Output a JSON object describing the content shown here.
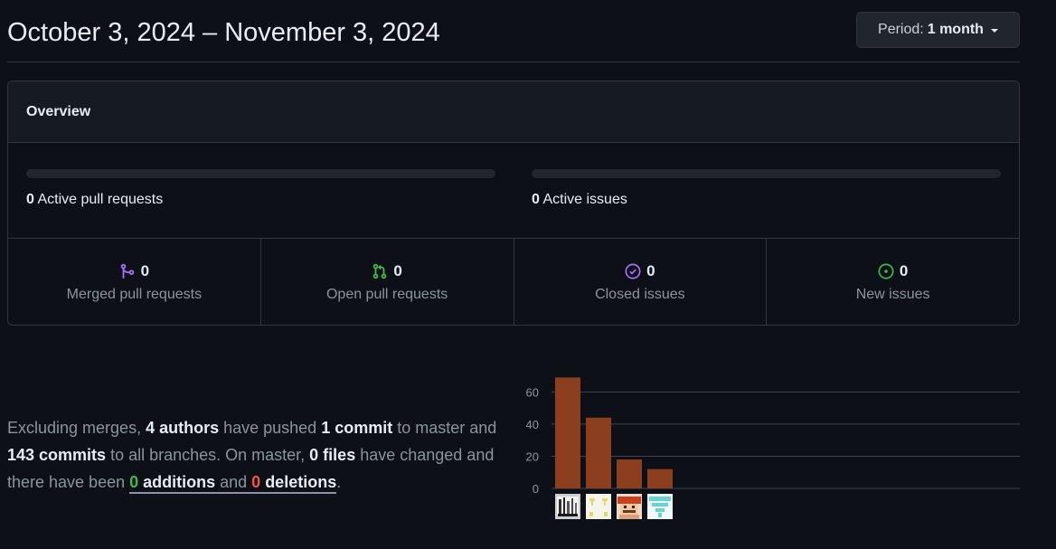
{
  "header": {
    "date_range": "October 3, 2024 – November 3, 2024",
    "period_prefix": "Period:",
    "period_value": "1 month"
  },
  "overview": {
    "title": "Overview",
    "active_prs": {
      "count": "0",
      "label": "Active pull requests",
      "fraction": 0
    },
    "active_issues": {
      "count": "0",
      "label": "Active issues",
      "fraction": 0
    },
    "stats": [
      {
        "icon": "merge-icon",
        "count": "0",
        "label": "Merged pull requests",
        "color": "#a371f7"
      },
      {
        "icon": "pull-request-icon",
        "count": "0",
        "label": "Open pull requests",
        "color": "#3fb950"
      },
      {
        "icon": "issue-closed-icon",
        "count": "0",
        "label": "Closed issues",
        "color": "#a371f7"
      },
      {
        "icon": "issue-opened-icon",
        "count": "0",
        "label": "New issues",
        "color": "#3fb950"
      }
    ]
  },
  "summary": {
    "t1": "Excluding merges, ",
    "authors": "4 authors",
    "t2": " have pushed ",
    "commit_master": "1 commit",
    "t3": " to master and ",
    "commits_all": "143 commits",
    "t4": " to all branches. On master, ",
    "files": "0 files",
    "t5": " have changed and there have been ",
    "additions_num": "0",
    "additions_word": " additions",
    "t6": " and ",
    "deletions_num": "0",
    "deletions_word": " deletions",
    "t7": "."
  },
  "chart_data": {
    "type": "bar",
    "categories": [
      "author-1",
      "author-2",
      "author-3",
      "author-4"
    ],
    "values": [
      69,
      44,
      18,
      12
    ],
    "yticks": [
      0,
      20,
      40,
      60
    ],
    "ylim": [
      0,
      72
    ],
    "bar_color": "#8b3f1e",
    "grid": true
  }
}
